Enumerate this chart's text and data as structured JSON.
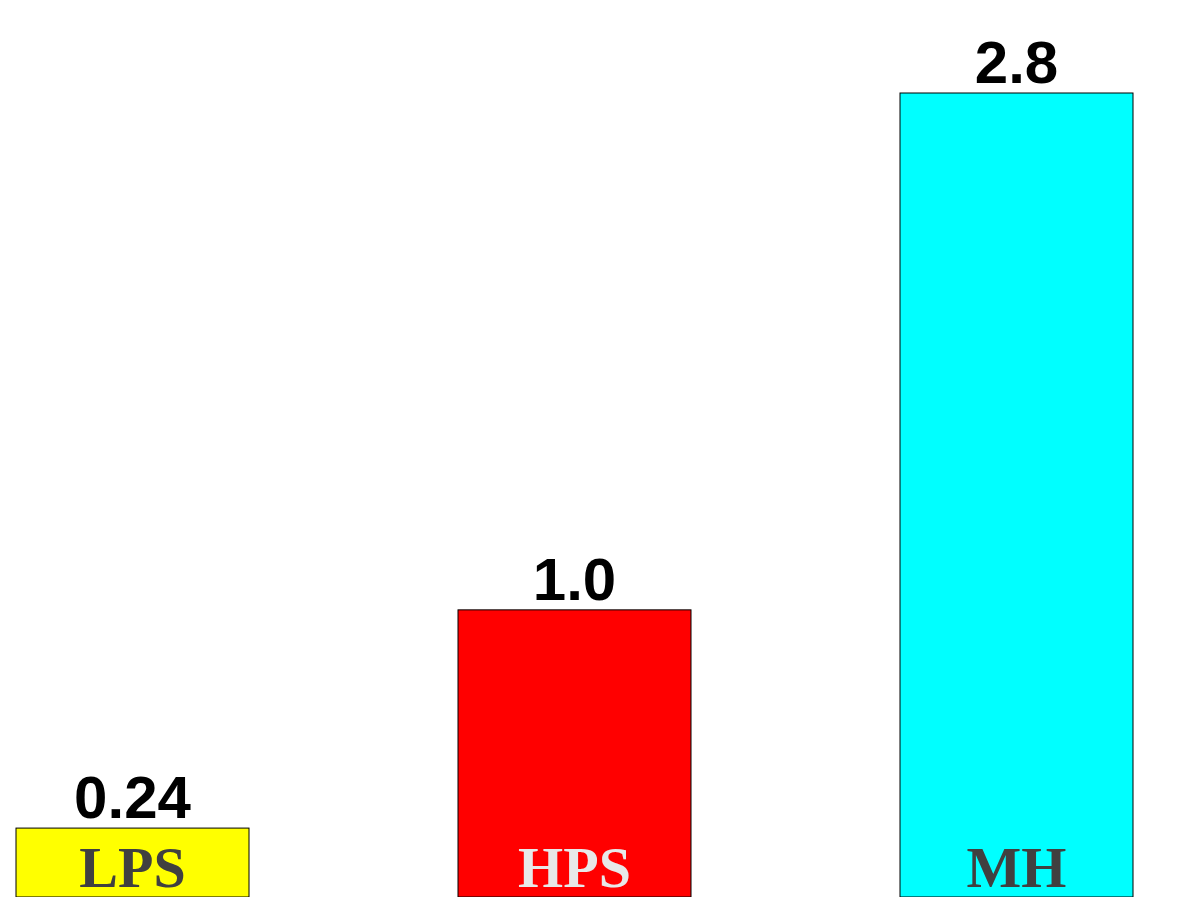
{
  "chart_data": {
    "type": "bar",
    "categories": [
      "LPS",
      "HPS",
      "MH"
    ],
    "values": [
      0.24,
      1.0,
      2.8
    ],
    "value_labels": [
      "0.24",
      "1.0",
      "2.8"
    ],
    "colors": [
      "#ffff00",
      "#ff0000",
      "#00ffff"
    ]
  }
}
